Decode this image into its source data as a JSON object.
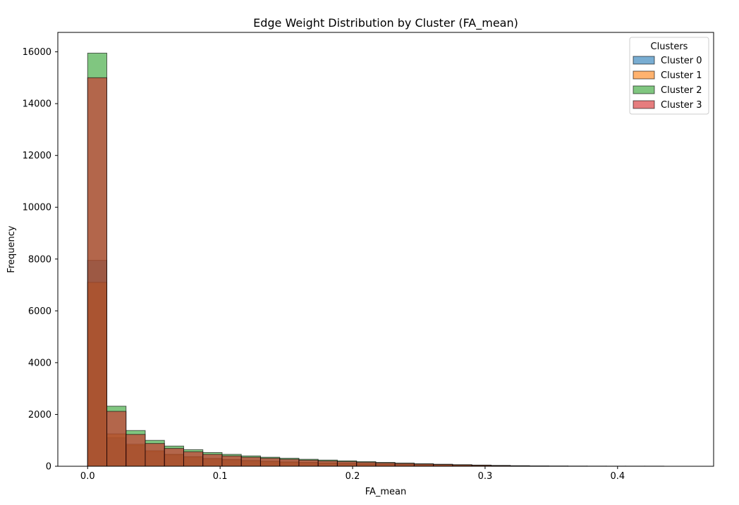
{
  "chart_data": {
    "type": "histogram",
    "title": "Edge Weight Distribution by Cluster (FA_mean)",
    "xlabel": "FA_mean",
    "ylabel": "Frequency",
    "xlim": [
      -0.0225,
      0.4725
    ],
    "ylim": [
      0,
      16750
    ],
    "x_ticks": [
      0.0,
      0.1,
      0.2,
      0.3,
      0.4
    ],
    "x_tick_labels": [
      "0.0",
      "0.1",
      "0.2",
      "0.3",
      "0.4"
    ],
    "y_ticks": [
      0,
      2000,
      4000,
      6000,
      8000,
      10000,
      12000,
      14000,
      16000
    ],
    "y_tick_labels": [
      "0",
      "2000",
      "4000",
      "6000",
      "8000",
      "10000",
      "12000",
      "14000",
      "16000"
    ],
    "legend": {
      "title": "Clusters",
      "placement": "top-right"
    },
    "grid": false,
    "bar_alpha": 0.6,
    "series": [
      {
        "name": "Cluster 0",
        "color": "#1f77b4",
        "bins": [
          [
            0.0,
            0.0145,
            7950
          ],
          [
            0.0145,
            0.029,
            1100
          ],
          [
            0.029,
            0.0435,
            800
          ],
          [
            0.0435,
            0.058,
            560
          ],
          [
            0.058,
            0.0725,
            440
          ],
          [
            0.0725,
            0.087,
            350
          ],
          [
            0.087,
            0.1015,
            290
          ],
          [
            0.1015,
            0.116,
            250
          ],
          [
            0.116,
            0.1305,
            215
          ],
          [
            0.1305,
            0.145,
            185
          ],
          [
            0.145,
            0.1595,
            160
          ],
          [
            0.1595,
            0.174,
            140
          ],
          [
            0.174,
            0.1885,
            120
          ],
          [
            0.1885,
            0.203,
            105
          ],
          [
            0.203,
            0.2175,
            90
          ],
          [
            0.2175,
            0.232,
            75
          ],
          [
            0.232,
            0.2465,
            62
          ],
          [
            0.2465,
            0.261,
            50
          ],
          [
            0.261,
            0.2755,
            40
          ],
          [
            0.2755,
            0.29,
            30
          ],
          [
            0.29,
            0.3045,
            22
          ],
          [
            0.3045,
            0.319,
            14
          ],
          [
            0.319,
            0.3335,
            9
          ],
          [
            0.3335,
            0.348,
            5
          ],
          [
            0.348,
            0.3625,
            3
          ],
          [
            0.3625,
            0.377,
            2
          ],
          [
            0.377,
            0.3915,
            1
          ],
          [
            0.3915,
            0.406,
            1
          ],
          [
            0.406,
            0.4205,
            1
          ],
          [
            0.4205,
            0.435,
            1
          ]
        ]
      },
      {
        "name": "Cluster 1",
        "color": "#ff7f0e",
        "bins": [
          [
            0.0,
            0.0145,
            7100
          ],
          [
            0.0145,
            0.029,
            1250
          ],
          [
            0.029,
            0.0435,
            850
          ],
          [
            0.0435,
            0.058,
            600
          ],
          [
            0.058,
            0.0725,
            460
          ],
          [
            0.0725,
            0.087,
            370
          ],
          [
            0.087,
            0.1015,
            300
          ],
          [
            0.1015,
            0.116,
            255
          ],
          [
            0.116,
            0.1305,
            220
          ],
          [
            0.1305,
            0.145,
            190
          ],
          [
            0.145,
            0.1595,
            165
          ],
          [
            0.1595,
            0.174,
            145
          ],
          [
            0.174,
            0.1885,
            125
          ],
          [
            0.1885,
            0.203,
            108
          ],
          [
            0.203,
            0.2175,
            92
          ],
          [
            0.2175,
            0.232,
            78
          ],
          [
            0.232,
            0.2465,
            64
          ],
          [
            0.2465,
            0.261,
            52
          ],
          [
            0.261,
            0.2755,
            41
          ],
          [
            0.2755,
            0.29,
            31
          ],
          [
            0.29,
            0.3045,
            22
          ],
          [
            0.3045,
            0.319,
            15
          ],
          [
            0.319,
            0.3335,
            9
          ],
          [
            0.3335,
            0.348,
            5
          ],
          [
            0.348,
            0.3625,
            3
          ],
          [
            0.3625,
            0.377,
            2
          ],
          [
            0.377,
            0.3915,
            1
          ],
          [
            0.3915,
            0.406,
            1
          ],
          [
            0.406,
            0.4205,
            1
          ],
          [
            0.4205,
            0.435,
            1
          ]
        ]
      },
      {
        "name": "Cluster 2",
        "color": "#2ca02c",
        "bins": [
          [
            0.0,
            0.0145,
            15950
          ],
          [
            0.0145,
            0.029,
            2320
          ],
          [
            0.029,
            0.0435,
            1380
          ],
          [
            0.0435,
            0.058,
            1000
          ],
          [
            0.058,
            0.0725,
            780
          ],
          [
            0.0725,
            0.087,
            640
          ],
          [
            0.087,
            0.1015,
            530
          ],
          [
            0.1015,
            0.116,
            460
          ],
          [
            0.116,
            0.1305,
            400
          ],
          [
            0.1305,
            0.145,
            350
          ],
          [
            0.145,
            0.1595,
            310
          ],
          [
            0.1595,
            0.174,
            270
          ],
          [
            0.174,
            0.1885,
            240
          ],
          [
            0.1885,
            0.203,
            210
          ],
          [
            0.203,
            0.2175,
            180
          ],
          [
            0.2175,
            0.232,
            150
          ],
          [
            0.232,
            0.2465,
            125
          ],
          [
            0.2465,
            0.261,
            100
          ],
          [
            0.261,
            0.2755,
            80
          ],
          [
            0.2755,
            0.29,
            62
          ],
          [
            0.29,
            0.3045,
            46
          ],
          [
            0.3045,
            0.319,
            32
          ],
          [
            0.319,
            0.3335,
            20
          ],
          [
            0.3335,
            0.348,
            12
          ],
          [
            0.348,
            0.3625,
            7
          ],
          [
            0.3625,
            0.377,
            4
          ],
          [
            0.377,
            0.3915,
            3
          ],
          [
            0.3915,
            0.406,
            2
          ],
          [
            0.406,
            0.4205,
            1
          ],
          [
            0.4205,
            0.435,
            1
          ]
        ]
      },
      {
        "name": "Cluster 3",
        "color": "#d62728",
        "bins": [
          [
            0.0,
            0.0145,
            15000
          ],
          [
            0.0145,
            0.029,
            2120
          ],
          [
            0.029,
            0.0435,
            1230
          ],
          [
            0.0435,
            0.058,
            880
          ],
          [
            0.058,
            0.0725,
            690
          ],
          [
            0.0725,
            0.087,
            560
          ],
          [
            0.087,
            0.1015,
            460
          ],
          [
            0.1015,
            0.116,
            400
          ],
          [
            0.116,
            0.1305,
            350
          ],
          [
            0.1305,
            0.145,
            310
          ],
          [
            0.145,
            0.1595,
            270
          ],
          [
            0.1595,
            0.174,
            235
          ],
          [
            0.174,
            0.1885,
            205
          ],
          [
            0.1885,
            0.203,
            180
          ],
          [
            0.203,
            0.2175,
            155
          ],
          [
            0.2175,
            0.232,
            130
          ],
          [
            0.232,
            0.2465,
            108
          ],
          [
            0.2465,
            0.261,
            86
          ],
          [
            0.261,
            0.2755,
            68
          ],
          [
            0.2755,
            0.29,
            52
          ],
          [
            0.29,
            0.3045,
            38
          ],
          [
            0.3045,
            0.319,
            26
          ],
          [
            0.319,
            0.3335,
            16
          ],
          [
            0.3335,
            0.348,
            10
          ],
          [
            0.348,
            0.3625,
            6
          ],
          [
            0.3625,
            0.377,
            3
          ],
          [
            0.377,
            0.3915,
            2
          ],
          [
            0.3915,
            0.406,
            1
          ],
          [
            0.406,
            0.4205,
            1
          ],
          [
            0.4205,
            0.435,
            1
          ]
        ]
      }
    ]
  }
}
